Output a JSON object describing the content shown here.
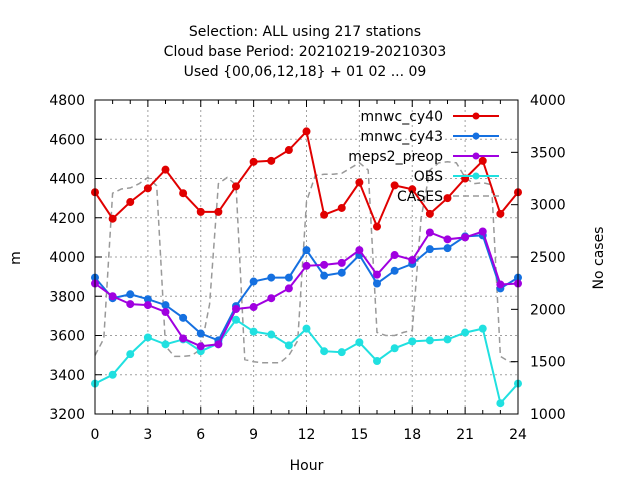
{
  "chart_data": {
    "type": "line",
    "title_lines": [
      "Selection: ALL using   217 stations",
      "Cloud base   Period: 20210219-20210303",
      "Used {00,06,12,18} + 01 02 ... 09"
    ],
    "xlabel": "Hour",
    "ylabel": "m",
    "y2label": "No cases",
    "xlim": [
      0,
      24
    ],
    "ylim": [
      3200,
      4800
    ],
    "y2lim": [
      1000,
      4000
    ],
    "xticks": [
      "0",
      "3",
      "6",
      "9",
      "12",
      "15",
      "18",
      "21",
      "24"
    ],
    "yticks": [
      "3200",
      "3400",
      "3600",
      "3800",
      "4000",
      "4200",
      "4400",
      "4600",
      "4800"
    ],
    "y2ticks": [
      "1000",
      "1500",
      "2000",
      "2500",
      "3000",
      "3500",
      "4000"
    ],
    "grid": true,
    "legend_position": "top-right",
    "x": [
      0,
      1,
      2,
      3,
      4,
      5,
      6,
      7,
      8,
      9,
      10,
      11,
      12,
      13,
      14,
      15,
      16,
      17,
      18,
      19,
      20,
      21,
      22,
      23,
      24
    ],
    "series": [
      {
        "name": "mnwc_cy40",
        "color": "#e00000",
        "marker": "circle",
        "values": [
          4330,
          4195,
          4280,
          4350,
          4445,
          4325,
          4230,
          4230,
          4360,
          4485,
          4490,
          4545,
          4640,
          4215,
          4250,
          4380,
          4155,
          4365,
          4345,
          4220,
          4300,
          4400,
          4490,
          4220,
          4330
        ]
      },
      {
        "name": "mnwc_cy43",
        "color": "#1570e0",
        "marker": "circle",
        "values": [
          3895,
          3790,
          3810,
          3785,
          3755,
          3690,
          3610,
          3575,
          3750,
          3875,
          3895,
          3895,
          4035,
          3905,
          3920,
          4010,
          3865,
          3930,
          3965,
          4040,
          4045,
          4105,
          4110,
          3840,
          3895
        ]
      },
      {
        "name": "meps2_preop",
        "color": "#a000e0",
        "marker": "circle",
        "values": [
          3865,
          3800,
          3760,
          3755,
          3720,
          3585,
          3545,
          3555,
          3735,
          3745,
          3790,
          3840,
          3955,
          3960,
          3970,
          4035,
          3910,
          4010,
          3985,
          4125,
          4090,
          4100,
          4130,
          3860,
          3865
        ]
      },
      {
        "name": "OBS",
        "color": "#20e0e0",
        "marker": "circle",
        "values": [
          3355,
          3400,
          3505,
          3590,
          3555,
          3580,
          3520,
          3560,
          3680,
          3620,
          3605,
          3550,
          3635,
          3520,
          3515,
          3565,
          3470,
          3535,
          3570,
          3575,
          3580,
          3615,
          3635,
          3255,
          3355
        ]
      },
      {
        "name": "CASES",
        "color": "#999999",
        "style": "dashed",
        "axis": "y2",
        "x": [
          0,
          0.5,
          1,
          1.5,
          2,
          2.5,
          3,
          3.5,
          4,
          4.5,
          5,
          5.5,
          6,
          6.5,
          7,
          7.5,
          8,
          8.5,
          9,
          9.5,
          10,
          10.5,
          11,
          11.5,
          12,
          12.5,
          13,
          13.5,
          14,
          14.5,
          15,
          15.5,
          16,
          16.5,
          17,
          17.5,
          18,
          18.5,
          19,
          19.5,
          20,
          20.5,
          21,
          21.5,
          22,
          22.5,
          23,
          23.5,
          24
        ],
        "values": [
          1560,
          1720,
          3110,
          3150,
          3160,
          3200,
          3260,
          3180,
          1650,
          1550,
          1550,
          1560,
          1620,
          2050,
          3200,
          3260,
          3190,
          1520,
          1500,
          1490,
          1490,
          1490,
          1560,
          1700,
          3030,
          3280,
          3290,
          3290,
          3300,
          3350,
          3400,
          3330,
          1780,
          1750,
          1750,
          1780,
          1800,
          2870,
          3330,
          3400,
          3410,
          3400,
          3260,
          3200,
          3210,
          3190,
          1550,
          1500,
          1500
        ]
      }
    ]
  }
}
